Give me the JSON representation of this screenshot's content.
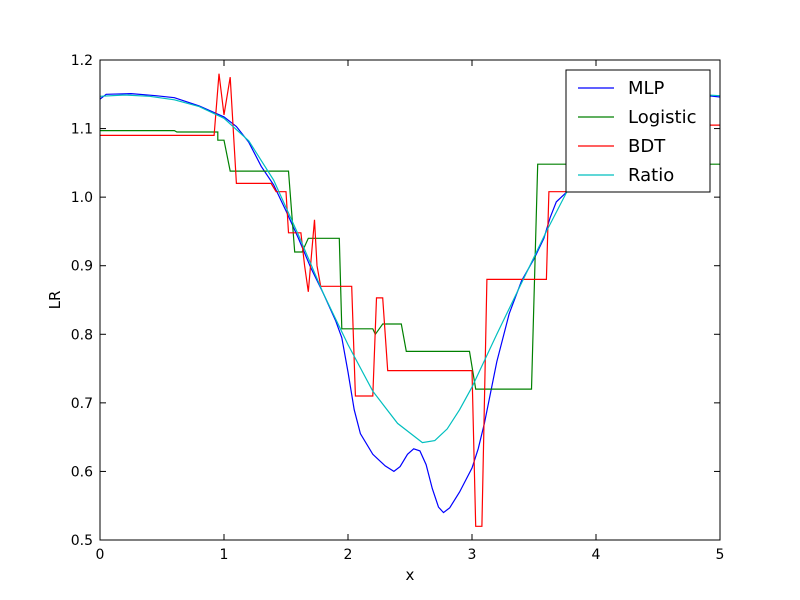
{
  "chart_data": {
    "type": "line",
    "title": "",
    "xlabel": "x",
    "ylabel": "LR",
    "xlim": [
      0,
      5
    ],
    "ylim": [
      0.5,
      1.2
    ],
    "xticks": [
      0,
      1,
      2,
      3,
      4,
      5
    ],
    "xtick_labels": [
      "0",
      "1",
      "2",
      "3",
      "4",
      "5"
    ],
    "yticks": [
      0.5,
      0.6,
      0.7,
      0.8,
      0.9,
      1.0,
      1.1,
      1.2
    ],
    "ytick_labels": [
      "0.5",
      "0.6",
      "0.7",
      "0.8",
      "0.9",
      "1.0",
      "1.1",
      "1.2"
    ],
    "grid": false,
    "legend_position": "top-right",
    "series": [
      {
        "name": "MLP",
        "color": "#0000ff",
        "points": [
          [
            0,
            1.143
          ],
          [
            0.05,
            1.15
          ],
          [
            0.25,
            1.151
          ],
          [
            0.45,
            1.148
          ],
          [
            0.6,
            1.145
          ],
          [
            0.8,
            1.133
          ],
          [
            1.0,
            1.117
          ],
          [
            1.1,
            1.103
          ],
          [
            1.2,
            1.08
          ],
          [
            1.3,
            1.045
          ],
          [
            1.4,
            1.018
          ],
          [
            1.5,
            0.98
          ],
          [
            1.6,
            0.94
          ],
          [
            1.7,
            0.897
          ],
          [
            1.8,
            0.86
          ],
          [
            1.9,
            0.82
          ],
          [
            1.95,
            0.795
          ],
          [
            2.0,
            0.745
          ],
          [
            2.05,
            0.69
          ],
          [
            2.1,
            0.655
          ],
          [
            2.2,
            0.625
          ],
          [
            2.3,
            0.608
          ],
          [
            2.37,
            0.6
          ],
          [
            2.42,
            0.607
          ],
          [
            2.48,
            0.625
          ],
          [
            2.53,
            0.633
          ],
          [
            2.58,
            0.63
          ],
          [
            2.63,
            0.61
          ],
          [
            2.68,
            0.575
          ],
          [
            2.73,
            0.548
          ],
          [
            2.77,
            0.54
          ],
          [
            2.82,
            0.547
          ],
          [
            2.9,
            0.57
          ],
          [
            3.0,
            0.605
          ],
          [
            3.05,
            0.633
          ],
          [
            3.1,
            0.67
          ],
          [
            3.2,
            0.76
          ],
          [
            3.3,
            0.83
          ],
          [
            3.4,
            0.878
          ],
          [
            3.5,
            0.91
          ],
          [
            3.58,
            0.94
          ],
          [
            3.63,
            0.97
          ],
          [
            3.68,
            0.993
          ],
          [
            3.75,
            1.005
          ],
          [
            3.9,
            1.03
          ],
          [
            4.1,
            1.07
          ],
          [
            4.3,
            1.105
          ],
          [
            4.5,
            1.13
          ],
          [
            4.7,
            1.145
          ],
          [
            4.9,
            1.148
          ],
          [
            5.0,
            1.146
          ]
        ]
      },
      {
        "name": "Logistic",
        "color": "#008000",
        "points": [
          [
            0,
            1.097
          ],
          [
            0.6,
            1.097
          ],
          [
            0.62,
            1.095
          ],
          [
            0.95,
            1.095
          ],
          [
            0.95,
            1.083
          ],
          [
            1.0,
            1.083
          ],
          [
            1.05,
            1.038
          ],
          [
            1.52,
            1.038
          ],
          [
            1.57,
            0.92
          ],
          [
            1.63,
            0.92
          ],
          [
            1.68,
            0.94
          ],
          [
            1.93,
            0.94
          ],
          [
            1.95,
            0.808
          ],
          [
            2.2,
            0.808
          ],
          [
            2.22,
            0.8
          ],
          [
            2.28,
            0.815
          ],
          [
            2.43,
            0.815
          ],
          [
            2.47,
            0.775
          ],
          [
            2.98,
            0.775
          ],
          [
            3.03,
            0.72
          ],
          [
            3.48,
            0.72
          ],
          [
            3.53,
            1.048
          ],
          [
            5.0,
            1.048
          ]
        ]
      },
      {
        "name": "BDT",
        "color": "#ff0000",
        "points": [
          [
            0,
            1.09
          ],
          [
            0.92,
            1.09
          ],
          [
            0.96,
            1.18
          ],
          [
            1.0,
            1.12
          ],
          [
            1.05,
            1.175
          ],
          [
            1.1,
            1.02
          ],
          [
            1.38,
            1.02
          ],
          [
            1.42,
            1.008
          ],
          [
            1.5,
            1.008
          ],
          [
            1.52,
            0.948
          ],
          [
            1.62,
            0.948
          ],
          [
            1.65,
            0.9
          ],
          [
            1.68,
            0.862
          ],
          [
            1.73,
            0.967
          ],
          [
            1.75,
            0.9
          ],
          [
            1.78,
            0.87
          ],
          [
            2.03,
            0.87
          ],
          [
            2.06,
            0.71
          ],
          [
            2.2,
            0.71
          ],
          [
            2.23,
            0.853
          ],
          [
            2.28,
            0.853
          ],
          [
            2.32,
            0.747
          ],
          [
            3.0,
            0.747
          ],
          [
            3.03,
            0.52
          ],
          [
            3.08,
            0.52
          ],
          [
            3.12,
            0.88
          ],
          [
            3.6,
            0.88
          ],
          [
            3.62,
            1.008
          ],
          [
            3.82,
            1.008
          ],
          [
            3.88,
            1.09
          ],
          [
            4.5,
            1.09
          ],
          [
            4.55,
            1.105
          ],
          [
            5.0,
            1.105
          ]
        ]
      },
      {
        "name": "Ratio",
        "color": "#00bfbf",
        "points": [
          [
            0,
            1.147
          ],
          [
            0.2,
            1.149
          ],
          [
            0.4,
            1.147
          ],
          [
            0.6,
            1.142
          ],
          [
            0.8,
            1.132
          ],
          [
            1.0,
            1.115
          ],
          [
            1.2,
            1.082
          ],
          [
            1.4,
            1.025
          ],
          [
            1.6,
            0.945
          ],
          [
            1.8,
            0.86
          ],
          [
            2.0,
            0.785
          ],
          [
            2.2,
            0.717
          ],
          [
            2.4,
            0.67
          ],
          [
            2.6,
            0.642
          ],
          [
            2.7,
            0.645
          ],
          [
            2.8,
            0.662
          ],
          [
            2.9,
            0.69
          ],
          [
            3.0,
            0.723
          ],
          [
            3.2,
            0.8
          ],
          [
            3.4,
            0.875
          ],
          [
            3.6,
            0.95
          ],
          [
            3.8,
            1.02
          ],
          [
            4.0,
            1.07
          ],
          [
            4.2,
            1.105
          ],
          [
            4.4,
            1.13
          ],
          [
            4.6,
            1.145
          ],
          [
            4.8,
            1.15
          ],
          [
            5.0,
            1.148
          ]
        ]
      }
    ]
  }
}
